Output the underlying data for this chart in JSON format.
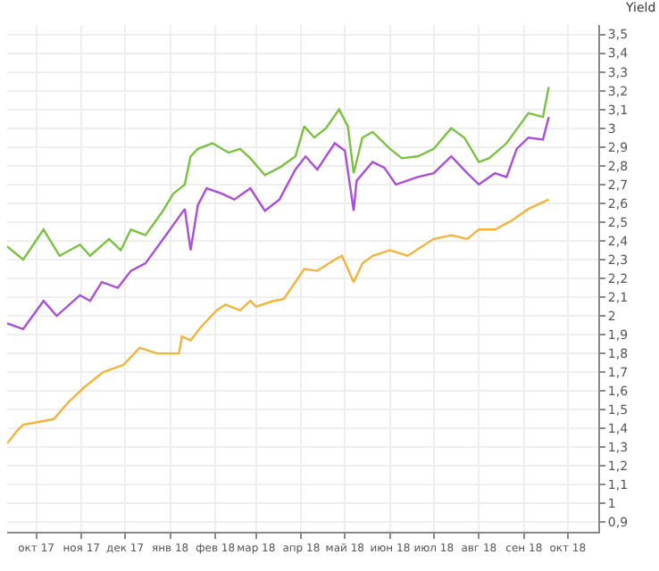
{
  "chart_data": {
    "type": "line",
    "title": "Yield",
    "grid": true,
    "marker": "none",
    "line_style": "solid",
    "xlim": [
      "2017-09-25",
      "2018-11-05"
    ],
    "xticks": [
      {
        "value": "2017-10-15",
        "label": "окт 17"
      },
      {
        "value": "2017-11-15",
        "label": "ноя 17"
      },
      {
        "value": "2017-12-15",
        "label": "дек 17"
      },
      {
        "value": "2018-01-15",
        "label": "янв 18"
      },
      {
        "value": "2018-02-15",
        "label": "фев 18"
      },
      {
        "value": "2018-03-15",
        "label": "мар 18"
      },
      {
        "value": "2018-04-15",
        "label": "апр 18"
      },
      {
        "value": "2018-05-15",
        "label": "май 18"
      },
      {
        "value": "2018-06-15",
        "label": "июн 18"
      },
      {
        "value": "2018-07-15",
        "label": "июл 18"
      },
      {
        "value": "2018-08-15",
        "label": "авг 18"
      },
      {
        "value": "2018-09-15",
        "label": "сен 18"
      },
      {
        "value": "2018-10-15",
        "label": "окт 18"
      }
    ],
    "ylim": [
      0.85,
      3.55
    ],
    "yticks": [
      {
        "value": 0.9,
        "label": "0,9"
      },
      1,
      {
        "value": 1.1,
        "label": "1,1"
      },
      {
        "value": 1.2,
        "label": "1,2"
      },
      {
        "value": 1.3,
        "label": "1,3"
      },
      {
        "value": 1.4,
        "label": "1,4"
      },
      {
        "value": 1.5,
        "label": "1,5"
      },
      {
        "value": 1.6,
        "label": "1,6"
      },
      {
        "value": 1.7,
        "label": "1,7"
      },
      {
        "value": 1.8,
        "label": "1,8"
      },
      {
        "value": 1.9,
        "label": "1,9"
      },
      2,
      {
        "value": 2.1,
        "label": "2,1"
      },
      {
        "value": 2.2,
        "label": "2,2"
      },
      {
        "value": 2.3,
        "label": "2,3"
      },
      {
        "value": 2.4,
        "label": "2,4"
      },
      {
        "value": 2.5,
        "label": "2,5"
      },
      {
        "value": 2.6,
        "label": "2,6"
      },
      {
        "value": 2.7,
        "label": "2,7"
      },
      {
        "value": 2.8,
        "label": "2,8"
      },
      {
        "value": 2.9,
        "label": "2,9"
      },
      3,
      {
        "value": 3.1,
        "label": "3,1"
      },
      {
        "value": 3.2,
        "label": "3,2"
      },
      {
        "value": 3.3,
        "label": "3,3"
      },
      {
        "value": 3.4,
        "label": "3,4"
      },
      {
        "value": 3.5,
        "label": "3,5"
      }
    ],
    "series": [
      {
        "color": "#7ac143",
        "x": [
          "2017-09-25",
          "2017-10-06",
          "2017-10-20",
          "2017-10-31",
          "2017-11-14",
          "2017-11-21",
          "2017-12-04",
          "2017-12-12",
          "2017-12-19",
          "2017-12-29",
          "2018-01-10",
          "2018-01-17",
          "2018-01-25",
          "2018-01-29",
          "2018-02-03",
          "2018-02-13",
          "2018-02-24",
          "2018-03-04",
          "2018-03-11",
          "2018-03-21",
          "2018-03-31",
          "2018-04-11",
          "2018-04-17",
          "2018-04-24",
          "2018-05-02",
          "2018-05-11",
          "2018-05-17",
          "2018-05-21",
          "2018-05-27",
          "2018-06-03",
          "2018-06-15",
          "2018-06-23",
          "2018-07-04",
          "2018-07-15",
          "2018-07-27",
          "2018-08-05",
          "2018-08-15",
          "2018-08-22",
          "2018-09-03",
          "2018-09-18",
          "2018-09-28",
          "2018-10-02"
        ],
        "values": [
          2.37,
          2.3,
          2.46,
          2.32,
          2.38,
          2.32,
          2.41,
          2.35,
          2.46,
          2.43,
          2.56,
          2.65,
          2.7,
          2.85,
          2.89,
          2.92,
          2.87,
          2.89,
          2.84,
          2.75,
          2.79,
          2.85,
          3.01,
          2.95,
          3.0,
          3.1,
          3.01,
          2.76,
          2.95,
          2.98,
          2.89,
          2.84,
          2.85,
          2.89,
          3.0,
          2.95,
          2.82,
          2.84,
          2.92,
          3.08,
          3.06,
          3.22
        ]
      },
      {
        "color": "#a94fd6",
        "x": [
          "2017-09-25",
          "2017-10-06",
          "2017-10-20",
          "2017-10-29",
          "2017-11-14",
          "2017-11-21",
          "2017-11-29",
          "2017-12-10",
          "2017-12-19",
          "2017-12-29",
          "2018-01-13",
          "2018-01-25",
          "2018-01-29",
          "2018-02-03",
          "2018-02-09",
          "2018-02-20",
          "2018-02-28",
          "2018-03-11",
          "2018-03-21",
          "2018-03-31",
          "2018-04-11",
          "2018-04-18",
          "2018-04-26",
          "2018-05-08",
          "2018-05-15",
          "2018-05-21",
          "2018-05-23",
          "2018-06-03",
          "2018-06-11",
          "2018-06-19",
          "2018-07-04",
          "2018-07-15",
          "2018-07-27",
          "2018-08-07",
          "2018-08-15",
          "2018-08-26",
          "2018-09-03",
          "2018-09-10",
          "2018-09-18",
          "2018-09-28",
          "2018-10-02"
        ],
        "values": [
          1.96,
          1.93,
          2.08,
          2.0,
          2.11,
          2.08,
          2.18,
          2.15,
          2.24,
          2.28,
          2.44,
          2.57,
          2.35,
          2.59,
          2.68,
          2.65,
          2.62,
          2.68,
          2.56,
          2.62,
          2.78,
          2.85,
          2.78,
          2.92,
          2.88,
          2.56,
          2.72,
          2.82,
          2.79,
          2.7,
          2.74,
          2.76,
          2.85,
          2.76,
          2.7,
          2.76,
          2.74,
          2.89,
          2.95,
          2.94,
          3.06
        ]
      },
      {
        "color": "#f0b43c",
        "x": [
          "2017-09-25",
          "2017-10-02",
          "2017-10-06",
          "2017-10-27",
          "2017-11-06",
          "2017-11-17",
          "2017-11-30",
          "2017-12-14",
          "2017-12-25",
          "2018-01-06",
          "2018-01-21",
          "2018-01-23",
          "2018-01-29",
          "2018-02-05",
          "2018-02-16",
          "2018-02-22",
          "2018-03-04",
          "2018-03-11",
          "2018-03-15",
          "2018-03-27",
          "2018-04-03",
          "2018-04-17",
          "2018-04-26",
          "2018-05-08",
          "2018-05-13",
          "2018-05-21",
          "2018-05-27",
          "2018-06-03",
          "2018-06-15",
          "2018-06-27",
          "2018-07-15",
          "2018-07-27",
          "2018-08-07",
          "2018-08-15",
          "2018-08-26",
          "2018-09-07",
          "2018-09-18",
          "2018-10-02"
        ],
        "values": [
          1.32,
          1.39,
          1.42,
          1.45,
          1.54,
          1.62,
          1.7,
          1.74,
          1.83,
          1.8,
          1.8,
          1.89,
          1.87,
          1.94,
          2.03,
          2.06,
          2.03,
          2.08,
          2.05,
          2.08,
          2.09,
          2.25,
          2.24,
          2.3,
          2.32,
          2.18,
          2.28,
          2.32,
          2.35,
          2.32,
          2.41,
          2.43,
          2.41,
          2.46,
          2.46,
          2.51,
          2.57,
          2.62
        ]
      }
    ]
  }
}
